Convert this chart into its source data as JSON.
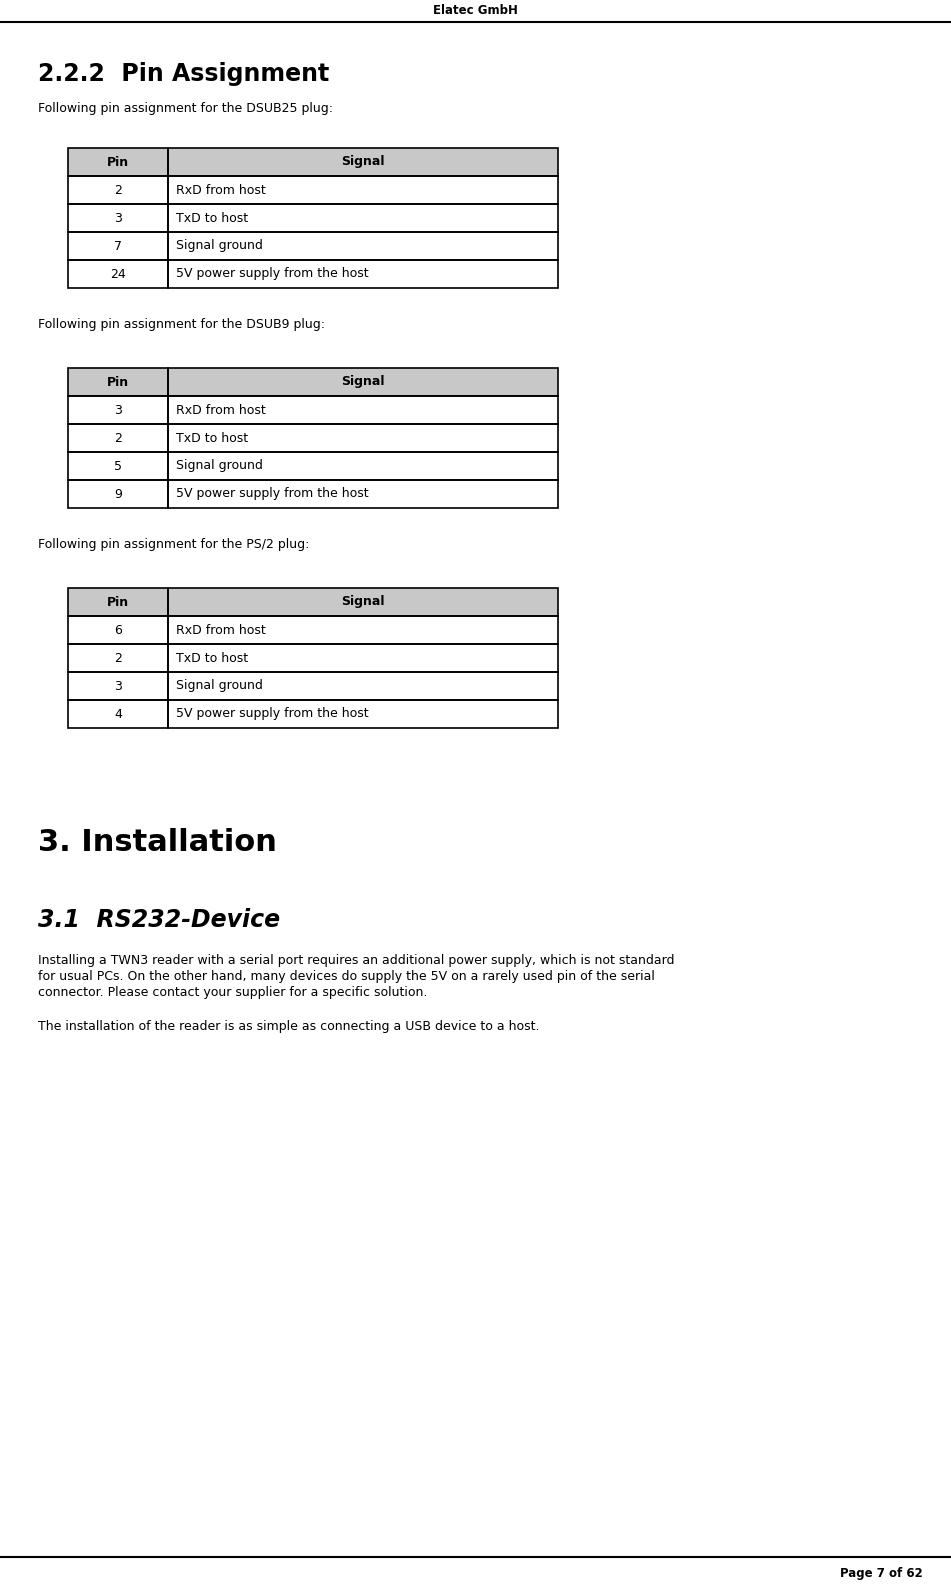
{
  "header_text": "Elatec GmbH",
  "footer_text": "Page 7 of 62",
  "section_title": "2.2.2  Pin Assignment",
  "intro1": "Following pin assignment for the DSUB25 plug:",
  "intro2": "Following pin assignment for the DSUB9 plug:",
  "intro3": "Following pin assignment for the PS/2 plug:",
  "table1": {
    "headers": [
      "Pin",
      "Signal"
    ],
    "rows": [
      [
        "2",
        "RxD from host"
      ],
      [
        "3",
        "TxD to host"
      ],
      [
        "7",
        "Signal ground"
      ],
      [
        "24",
        "5V power supply from the host"
      ]
    ]
  },
  "table2": {
    "headers": [
      "Pin",
      "Signal"
    ],
    "rows": [
      [
        "3",
        "RxD from host"
      ],
      [
        "2",
        "TxD to host"
      ],
      [
        "5",
        "Signal ground"
      ],
      [
        "9",
        "5V power supply from the host"
      ]
    ]
  },
  "table3": {
    "headers": [
      "Pin",
      "Signal"
    ],
    "rows": [
      [
        "6",
        "RxD from host"
      ],
      [
        "2",
        "TxD to host"
      ],
      [
        "3",
        "Signal ground"
      ],
      [
        "4",
        "5V power supply from the host"
      ]
    ]
  },
  "section2_title": "3. Installation",
  "section3_title": "3.1  RS232-Device",
  "para1_lines": [
    "Installing a TWN3 reader with a serial port requires an additional power supply, which is not standard",
    "for usual PCs. On the other hand, many devices do supply the 5V on a rarely used pin of the serial",
    "connector. Please contact your supplier for a specific solution."
  ],
  "para2": "The installation of the reader is as simple as connecting a USB device to a host.",
  "bg_color": "#ffffff",
  "table_header_bg": "#c8c8c8",
  "table_border_color": "#000000",
  "text_color": "#000000"
}
